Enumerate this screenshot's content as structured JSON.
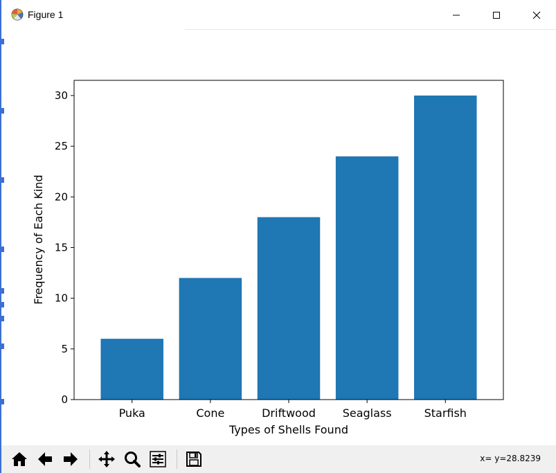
{
  "window": {
    "title": "Figure 1",
    "minimize_icon": "minimize-icon",
    "maximize_icon": "maximize-icon",
    "close_icon": "close-icon"
  },
  "toolbar": {
    "buttons": [
      "home-icon",
      "back-icon",
      "forward-icon",
      "pan-icon",
      "zoom-icon",
      "configure-subplots-icon",
      "save-icon"
    ],
    "coords_text": "x= y=28.8239"
  },
  "chart_data": {
    "type": "bar",
    "categories": [
      "Puka",
      "Cone",
      "Driftwood",
      "Seaglass",
      "Starfish"
    ],
    "values": [
      6,
      12,
      18,
      24,
      30
    ],
    "title": "",
    "xlabel": "Types of Shells Found",
    "ylabel": "Frequency of Each Kind",
    "ylim": [
      0,
      31.5
    ],
    "yticks": [
      0,
      5,
      10,
      15,
      20,
      25,
      30
    ],
    "color": "#1f77b4",
    "grid": false
  }
}
